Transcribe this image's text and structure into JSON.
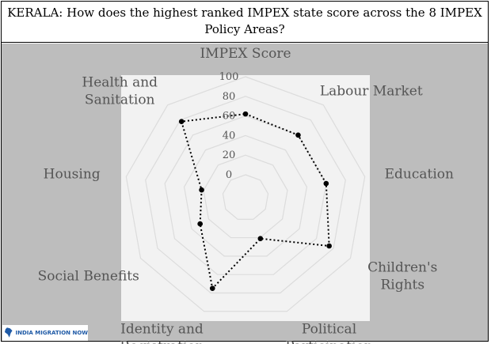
{
  "title": "KERALA: How does the highest ranked IMPEX state score across the 8 IMPEX Policy Areas?",
  "logo": {
    "text": "INDIA MIGRATION NOW",
    "icon": "india-map-icon"
  },
  "colors": {
    "panel": "#bdbdbd",
    "plot": "#f2f2f2",
    "grid": "#dcdcdc",
    "line": "#000000",
    "label": "#555555"
  },
  "chart_data": {
    "type": "radar",
    "title": "KERALA: How does the highest ranked IMPEX state score across the 8 IMPEX Policy Areas?",
    "categories": [
      "IMPEX Score",
      "Labour Market",
      "Education",
      "Children's Rights",
      "Political Participation",
      "Identity and Registration",
      "Social Benefits",
      "Housing",
      "Health and Sanitation"
    ],
    "category_lines": [
      [
        "IMPEX Score"
      ],
      [
        "Labour Market"
      ],
      [
        "Education"
      ],
      [
        "Children's",
        "Rights"
      ],
      [
        "Political",
        "Participation"
      ],
      [
        "Identity and",
        "Registration"
      ],
      [
        "Social Benefits"
      ],
      [
        "Housing"
      ],
      [
        "Health and",
        "Sanitation"
      ]
    ],
    "values": [
      62,
      60,
      60,
      75,
      21,
      75,
      30,
      22,
      78
    ],
    "rlim": [
      0,
      100
    ],
    "ticks": [
      0,
      20,
      40,
      60,
      80,
      100
    ],
    "tick_labels": [
      "0",
      "20",
      "40",
      "60",
      "80",
      "100"
    ],
    "line_style": "dotted"
  }
}
